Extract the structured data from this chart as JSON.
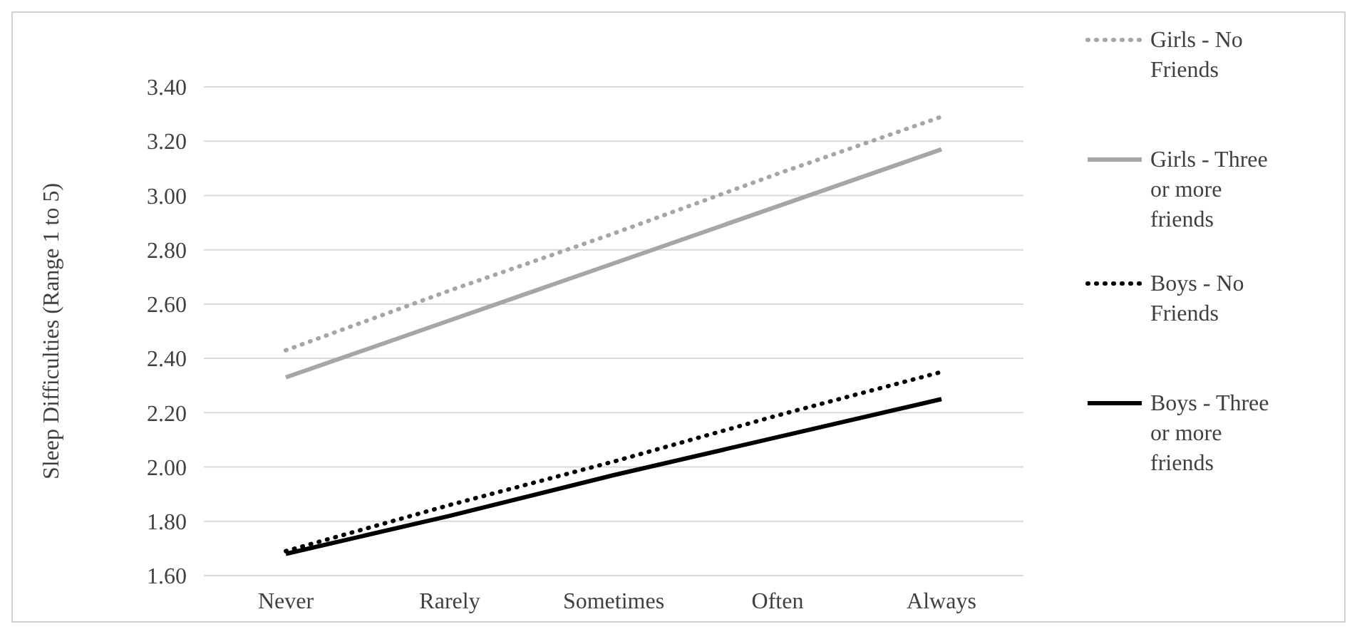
{
  "chart_data": {
    "type": "line",
    "ylabel": "Sleep Difficulties (Range 1 to 5)",
    "categories": [
      "Never",
      "Rarely",
      "Sometimes",
      "Often",
      "Always"
    ],
    "series": [
      {
        "name": "Girls - No Friends",
        "color": "#a6a6a6",
        "line_style": "dotted",
        "values": [
          2.43,
          2.65,
          2.86,
          3.08,
          3.29
        ]
      },
      {
        "name": "Girls - Three or more friends",
        "color": "#a6a6a6",
        "line_style": "solid",
        "values": [
          2.33,
          2.54,
          2.75,
          2.96,
          3.17
        ]
      },
      {
        "name": "Boys - No Friends",
        "color": "#000000",
        "line_style": "dotted",
        "values": [
          1.69,
          1.86,
          2.02,
          2.19,
          2.35
        ]
      },
      {
        "name": "Boys - Three or more friends",
        "color": "#000000",
        "line_style": "solid",
        "values": [
          1.68,
          1.82,
          1.97,
          2.11,
          2.25
        ]
      }
    ],
    "ylim": [
      1.6,
      3.4
    ],
    "yticks": [
      {
        "value": 1.6,
        "label": "1.60"
      },
      {
        "value": 1.8,
        "label": "1.80"
      },
      {
        "value": 2.0,
        "label": "2.00"
      },
      {
        "value": 2.2,
        "label": "2.20"
      },
      {
        "value": 2.4,
        "label": "2.40"
      },
      {
        "value": 2.6,
        "label": "2.60"
      },
      {
        "value": 2.8,
        "label": "2.80"
      },
      {
        "value": 3.0,
        "label": "3.00"
      },
      {
        "value": 3.2,
        "label": "3.20"
      },
      {
        "value": 3.4,
        "label": "3.40"
      }
    ],
    "grid": "y",
    "legend": "right"
  }
}
